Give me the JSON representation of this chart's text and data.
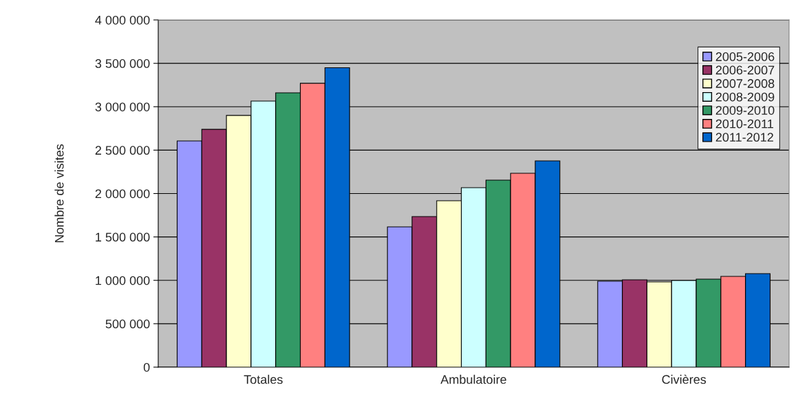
{
  "chart_data": {
    "type": "bar",
    "ylabel": "Nombre de visites",
    "categories": [
      "Totales",
      "Ambulatoire",
      "Civières"
    ],
    "series": [
      {
        "name": "2005-2006",
        "color": "#9999ff",
        "values": [
          2606000,
          1616000,
          990000
        ]
      },
      {
        "name": "2006-2007",
        "color": "#993366",
        "values": [
          2740000,
          1735000,
          1006000
        ]
      },
      {
        "name": "2007-2008",
        "color": "#ffffcc",
        "values": [
          2900000,
          1917000,
          982000
        ]
      },
      {
        "name": "2008-2009",
        "color": "#ccffff",
        "values": [
          3065000,
          2067000,
          998000
        ]
      },
      {
        "name": "2009-2010",
        "color": "#339966",
        "values": [
          3160000,
          2154000,
          1014000
        ]
      },
      {
        "name": "2010-2011",
        "color": "#ff8080",
        "values": [
          3270000,
          2234000,
          1046000
        ]
      },
      {
        "name": "2011-2012",
        "color": "#0066cc",
        "values": [
          3450000,
          2376000,
          1077000
        ]
      }
    ],
    "ylim": [
      0,
      4000000
    ],
    "yticks": [
      0,
      {
        "value": 500000,
        "label": "500 000"
      },
      {
        "value": 1000000,
        "label": "1 000 000"
      },
      {
        "value": 1500000,
        "label": "1 500 000"
      },
      {
        "value": 2000000,
        "label": "2 000 000"
      },
      {
        "value": 2500000,
        "label": "2 500 000"
      },
      {
        "value": 3000000,
        "label": "3 000 000"
      },
      {
        "value": 3500000,
        "label": "3 500 000"
      },
      {
        "value": 4000000,
        "label": "4 000 000"
      }
    ],
    "grid": "y",
    "legend": "top right"
  }
}
